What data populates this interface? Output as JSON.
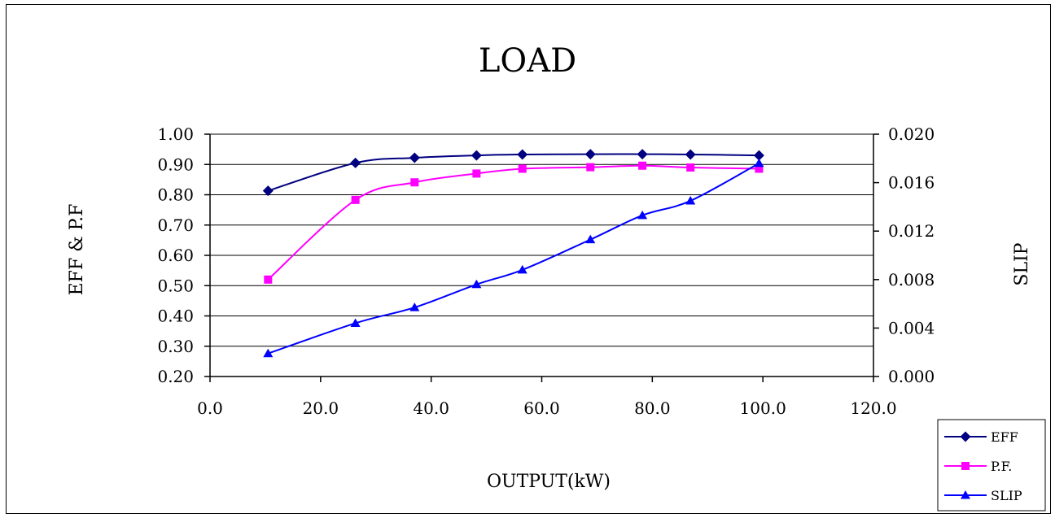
{
  "chart_data": {
    "type": "line",
    "title": "LOAD",
    "xlabel": "OUTPUT(kW)",
    "ylabel": "EFF & P.F",
    "y2label": "SLIP",
    "xlim": [
      0,
      120
    ],
    "ylim": [
      0.2,
      1.0
    ],
    "y2lim": [
      0.0,
      0.02
    ],
    "x_ticks": [
      "0.0",
      "20.0",
      "40.0",
      "60.0",
      "80.0",
      "100.0",
      "120.0"
    ],
    "y_ticks": [
      "0.20",
      "0.30",
      "0.40",
      "0.50",
      "0.60",
      "0.70",
      "0.80",
      "0.90",
      "1.00"
    ],
    "y2_ticks": [
      "0.000",
      "0.004",
      "0.008",
      "0.012",
      "0.016",
      "0.020"
    ],
    "grid": "horizontal",
    "legend_position": "bottom-right",
    "x": [
      10.5,
      26.3,
      37.0,
      48.2,
      56.5,
      68.8,
      78.2,
      86.9,
      99.3
    ],
    "series": [
      {
        "name": "EFF",
        "axis": "left",
        "marker": "diamond",
        "color": "#000080",
        "values": [
          0.813,
          0.905,
          0.922,
          0.93,
          0.933,
          0.934,
          0.934,
          0.933,
          0.93
        ]
      },
      {
        "name": "P.F.",
        "axis": "left",
        "marker": "square",
        "color": "#FF00FF",
        "values": [
          0.52,
          0.783,
          0.841,
          0.87,
          0.886,
          0.891,
          0.896,
          0.89,
          0.886
        ]
      },
      {
        "name": "SLIP",
        "axis": "right",
        "marker": "triangle",
        "color": "#0000FF",
        "values": [
          0.0019,
          0.0044,
          0.0057,
          0.0076,
          0.0088,
          0.0113,
          0.0133,
          0.0145,
          0.0176
        ]
      }
    ]
  }
}
